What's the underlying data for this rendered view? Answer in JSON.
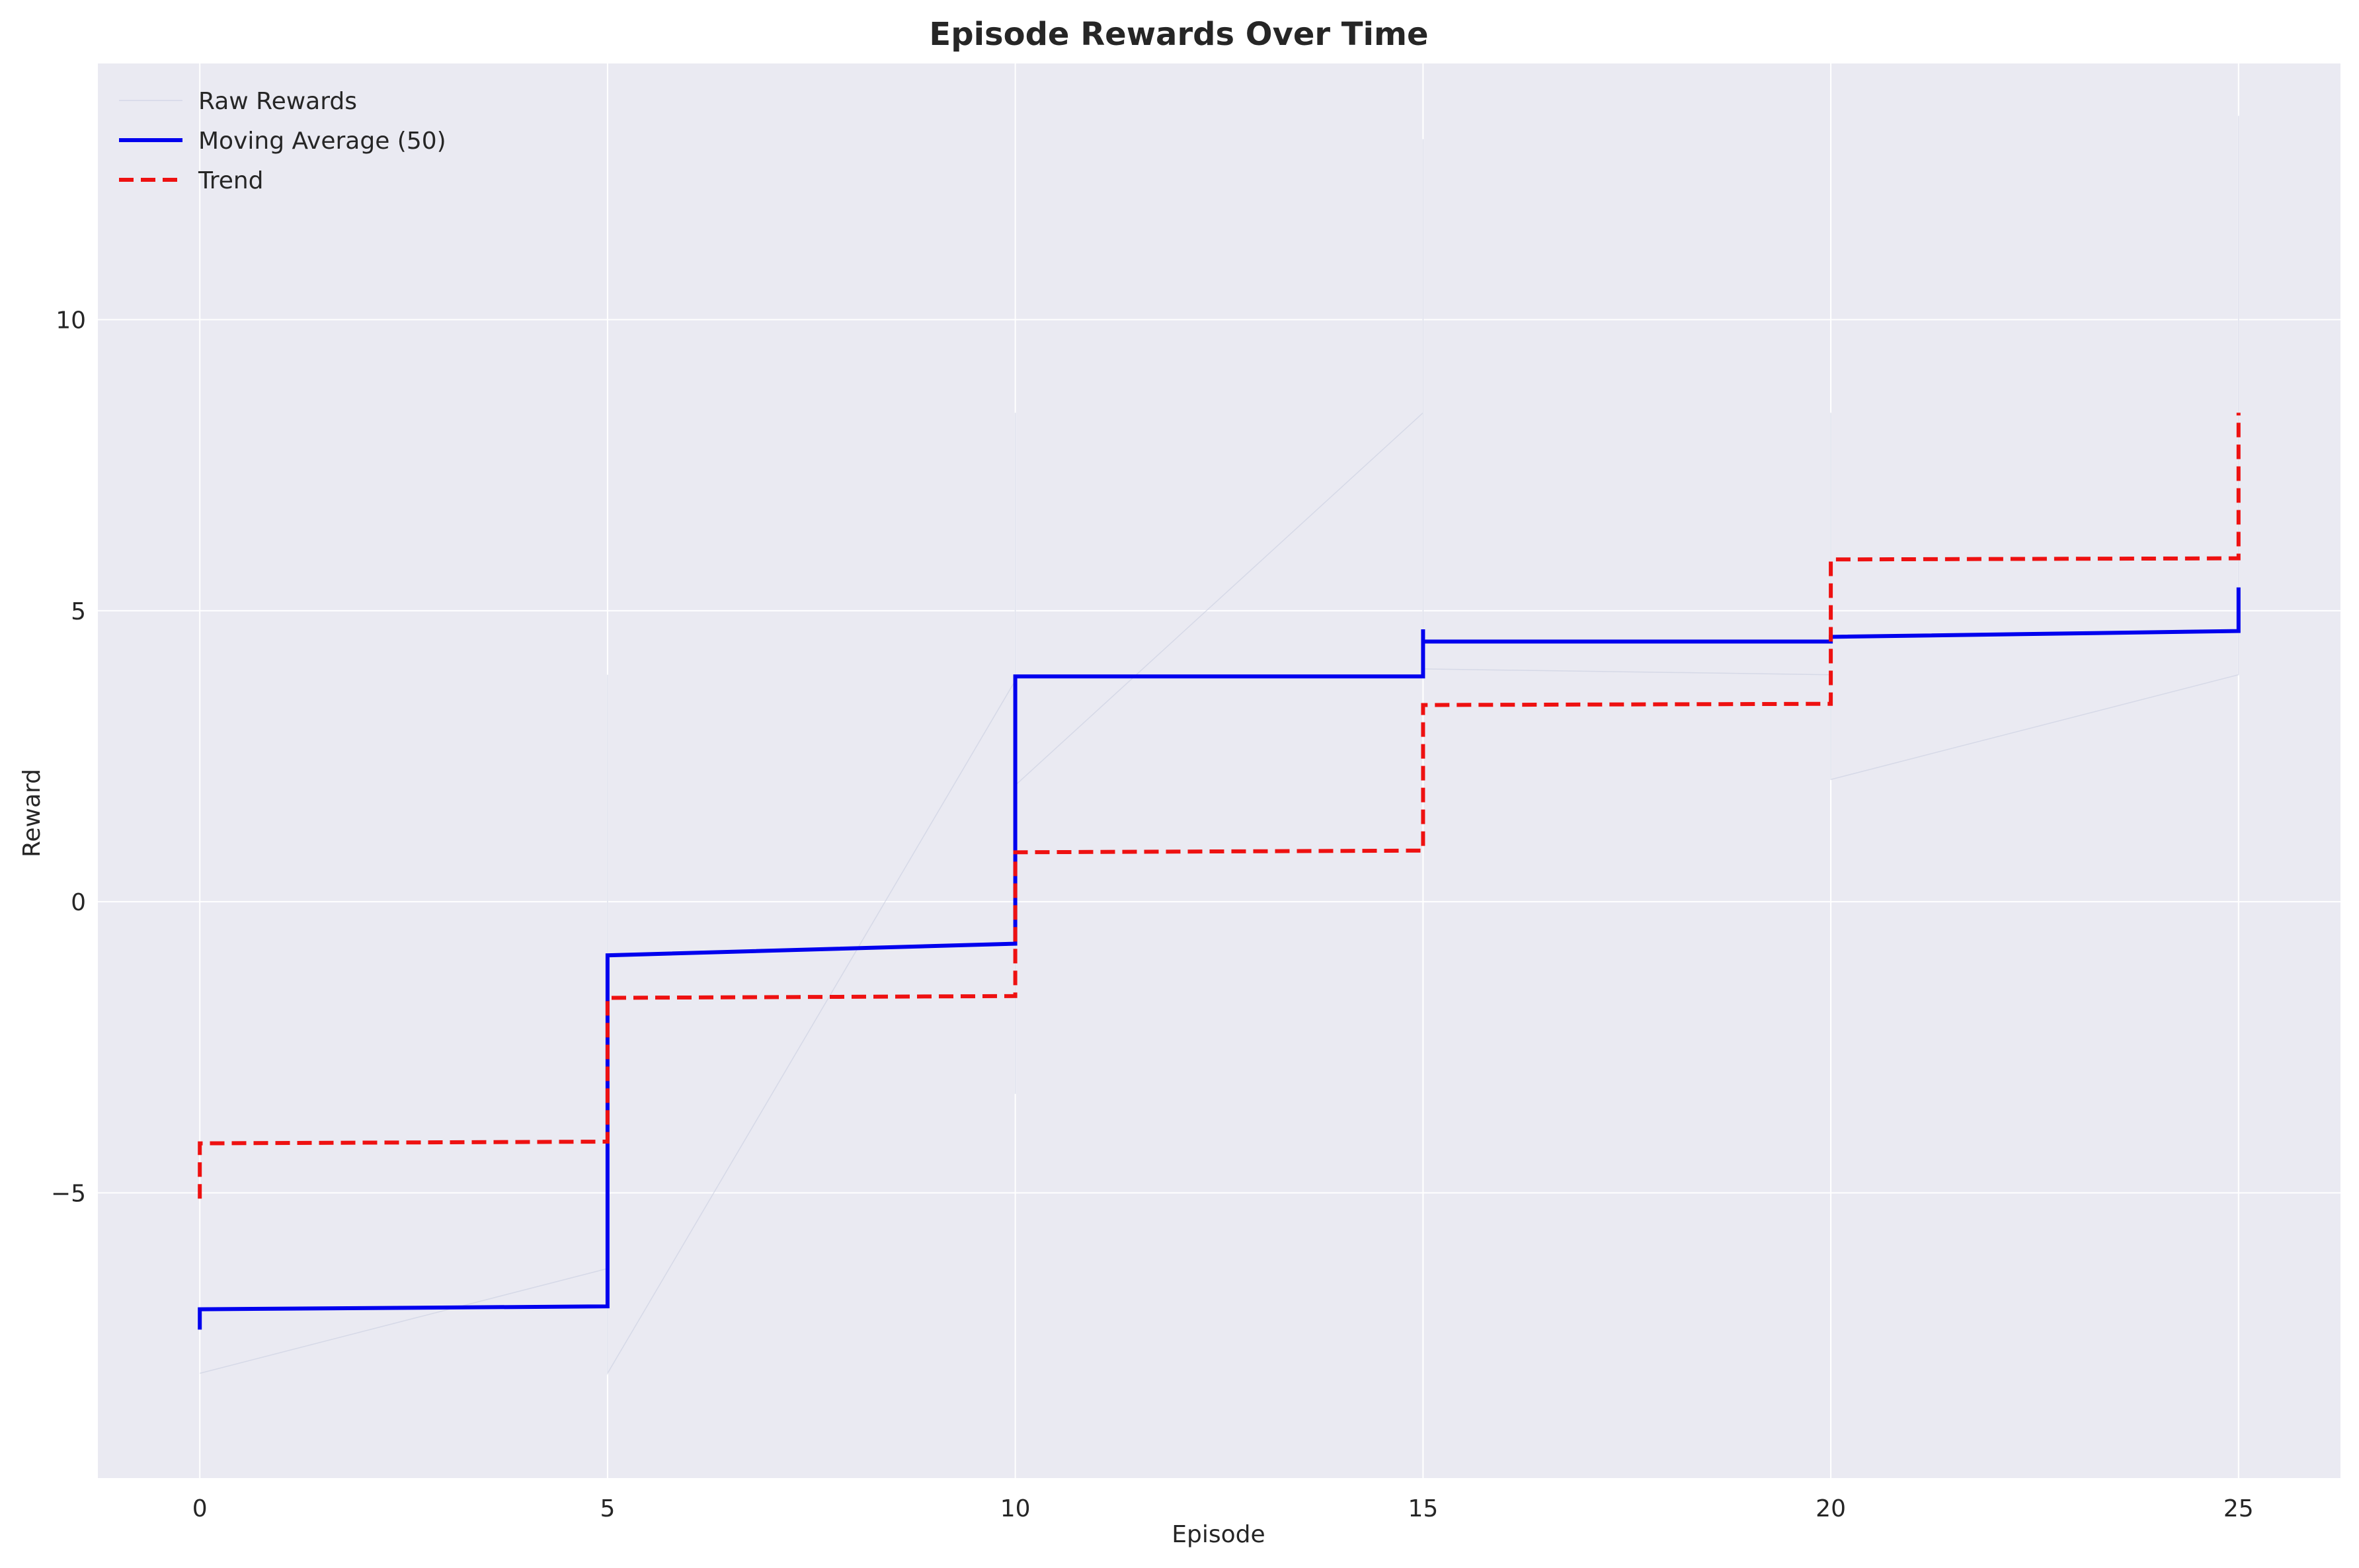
{
  "chart_data": {
    "type": "line",
    "title": "Episode Rewards Over Time",
    "xlabel": "Episode",
    "ylabel": "Reward",
    "xlim": [
      -1.25,
      26.25
    ],
    "ylim": [
      -9.9,
      14.4
    ],
    "xticks": [
      0,
      5,
      10,
      15,
      20,
      25
    ],
    "yticks": [
      -5,
      0,
      5,
      10
    ],
    "xtick_labels": [
      "0",
      "5",
      "10",
      "15",
      "20",
      "25"
    ],
    "ytick_labels": [
      "−5",
      "0",
      "5",
      "10"
    ],
    "grid": true,
    "legend_position": "top-left",
    "series": [
      {
        "name": "Raw Rewards",
        "style": "thin",
        "color": "#c8cde0",
        "points": [
          [
            0,
            -8.1
          ],
          [
            5,
            -6.3
          ],
          [
            5,
            3.9
          ],
          [
            5,
            -8.1
          ],
          [
            10,
            3.8
          ],
          [
            10,
            8.4
          ],
          [
            10,
            -3.3
          ],
          [
            10,
            2.0
          ],
          [
            15,
            8.4
          ],
          [
            15,
            13.1
          ],
          [
            15,
            4.0
          ],
          [
            20,
            3.9
          ],
          [
            20,
            8.4
          ],
          [
            20,
            2.1
          ],
          [
            25,
            3.9
          ],
          [
            25,
            13.5
          ]
        ]
      },
      {
        "name": "Moving Average (50)",
        "style": "solid",
        "color": "#0000ee",
        "points": [
          [
            0,
            -7.35
          ],
          [
            0,
            -7.0
          ],
          [
            5,
            -6.95
          ],
          [
            5,
            -0.92
          ],
          [
            10,
            -0.72
          ],
          [
            10,
            3.87
          ],
          [
            15,
            3.87
          ],
          [
            15,
            4.68
          ],
          [
            15,
            4.47
          ],
          [
            20,
            4.47
          ],
          [
            20,
            4.55
          ],
          [
            25,
            4.65
          ],
          [
            25,
            5.4
          ]
        ]
      },
      {
        "name": "Trend",
        "style": "dashed",
        "color": "#ee1111",
        "points": [
          [
            0,
            -5.1
          ],
          [
            0,
            -4.15
          ],
          [
            5,
            -4.12
          ],
          [
            5,
            -1.65
          ],
          [
            10,
            -1.62
          ],
          [
            10,
            0.85
          ],
          [
            15,
            0.88
          ],
          [
            15,
            3.38
          ],
          [
            20,
            3.4
          ],
          [
            20,
            5.88
          ],
          [
            25,
            5.9
          ],
          [
            25,
            8.4
          ]
        ]
      }
    ]
  }
}
